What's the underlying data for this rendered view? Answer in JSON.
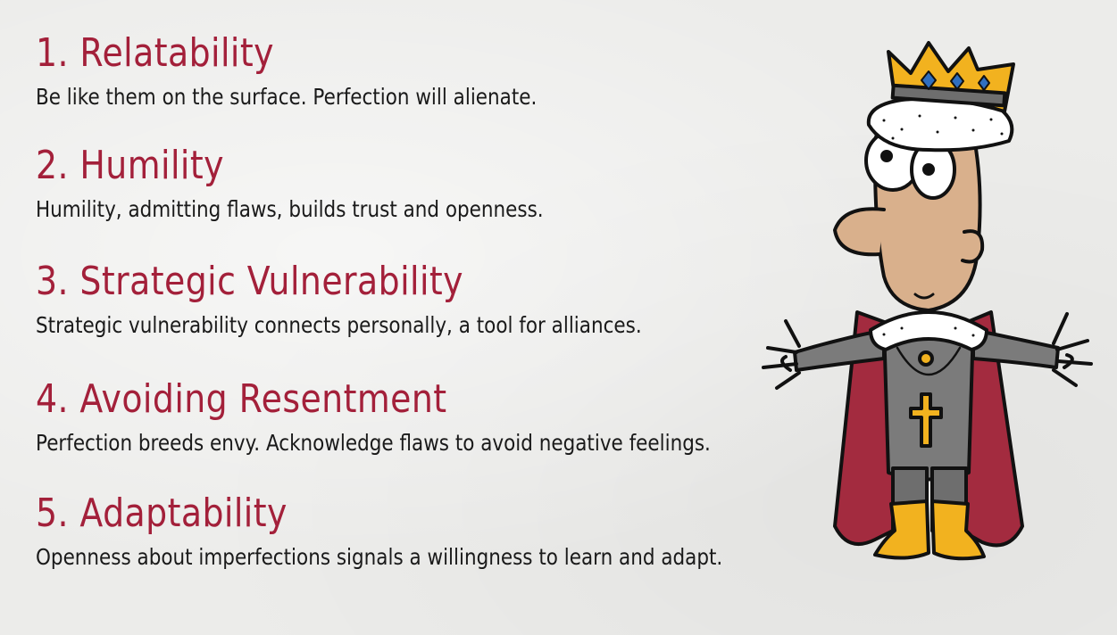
{
  "points": [
    {
      "title": "1. Relatability",
      "description": "Be like them on the surface. Perfection will alienate."
    },
    {
      "title": "2. Humility",
      "description": "Humility, admitting flaws, builds trust and openness."
    },
    {
      "title": "3. Strategic Vulnerability",
      "description": "Strategic vulnerability connects personally, a tool for alliances."
    },
    {
      "title": "4. Avoiding Resentment",
      "description": "Perfection breeds envy. Acknowledge flaws to avoid negative feelings."
    },
    {
      "title": "5. Adaptability",
      "description": "Openness about imperfections signals a willingness to learn and adapt."
    }
  ],
  "colors": {
    "title": "#a3203a",
    "text": "#1a1a1a",
    "cape": "#a32b3f",
    "crown": "#f2b21f",
    "gem": "#2f6fc0",
    "skin": "#d9b08c",
    "armor": "#7b7b7b"
  },
  "illustration": {
    "name": "cartoon-king-illustration"
  }
}
